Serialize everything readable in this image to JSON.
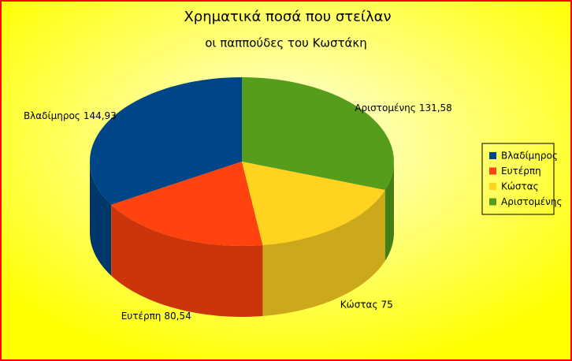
{
  "chart_data": {
    "type": "pie3d",
    "title": "Χρηματικά ποσά που στείλαν",
    "subtitle": "οι παππούδες του Κωστάκη",
    "categories": [
      "Βλαδίμηρος",
      "Ευτέρπη",
      "Κώστας",
      "Αριστομένης"
    ],
    "values": [
      144.93,
      80.54,
      75,
      131.58
    ],
    "value_labels": [
      "144,93",
      "80,54",
      "75",
      "131,58"
    ],
    "colors": [
      "#004586",
      "#ff420e",
      "#ffd320",
      "#579d1c"
    ],
    "legend": "right"
  }
}
